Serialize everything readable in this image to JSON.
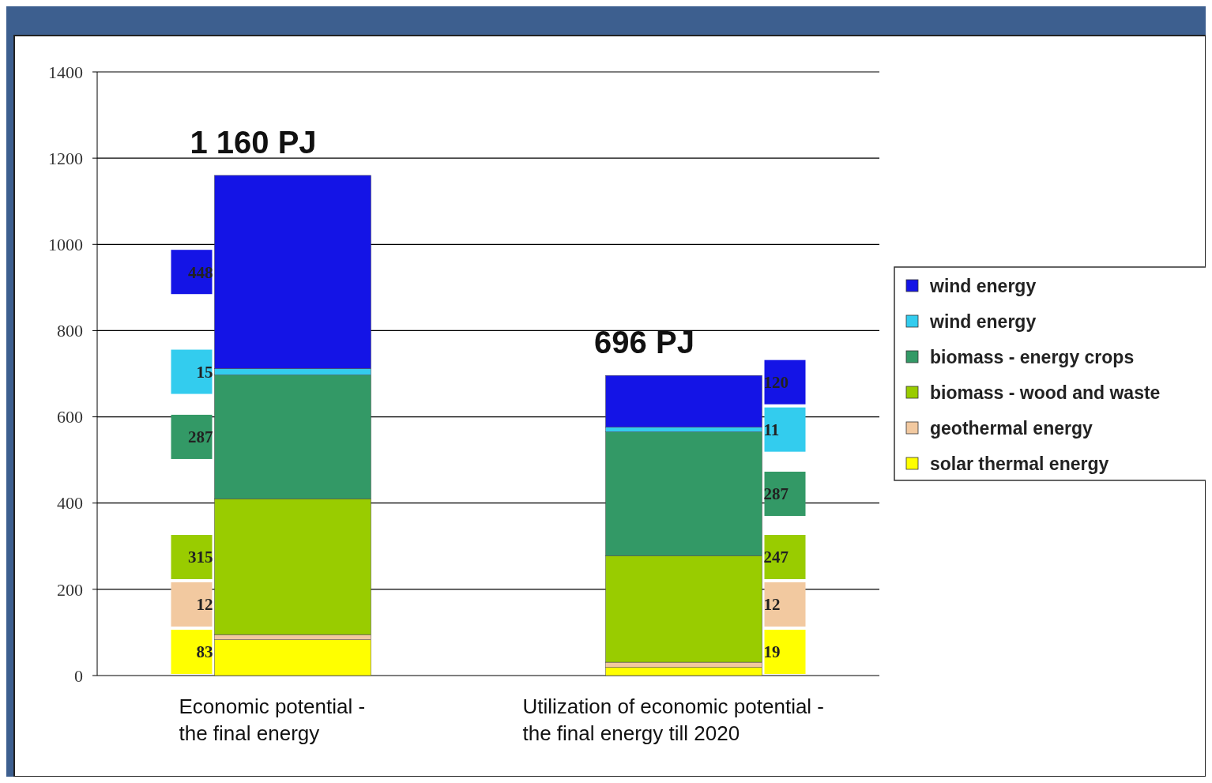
{
  "chart_data": {
    "type": "bar",
    "stacked": true,
    "categories": [
      "Economic potential - the final energy",
      "Utilization of economic potential - the final energy till 2020"
    ],
    "series": [
      {
        "name": "solar thermal energy",
        "color": "#ffff00",
        "values": [
          83,
          19
        ],
        "value_labels": [
          "83",
          "19"
        ]
      },
      {
        "name": "geothermal energy",
        "color": "#f2c9a0",
        "values": [
          12,
          12
        ],
        "value_labels": [
          "12",
          "12"
        ]
      },
      {
        "name": "biomass - wood and waste",
        "color": "#99cc00",
        "values": [
          315,
          247
        ],
        "value_labels": [
          "315",
          "247"
        ]
      },
      {
        "name": "biomass - energy crops",
        "color": "#339966",
        "values": [
          287,
          287
        ],
        "value_labels": [
          "287",
          "287"
        ]
      },
      {
        "name": "wind energy",
        "color": "#33ccee",
        "values": [
          15,
          11
        ],
        "value_labels": [
          "15",
          "11"
        ]
      },
      {
        "name": "wind energy",
        "color": "#1414e6",
        "values": [
          448,
          120
        ],
        "value_labels": [
          "448",
          "120"
        ]
      }
    ],
    "totals": [
      "1 160 PJ",
      "696 PJ"
    ],
    "ylim": [
      0,
      1400
    ],
    "yticks": [
      0,
      200,
      400,
      600,
      800,
      1000,
      1200,
      1400
    ],
    "grid": "y",
    "legend": "right"
  }
}
